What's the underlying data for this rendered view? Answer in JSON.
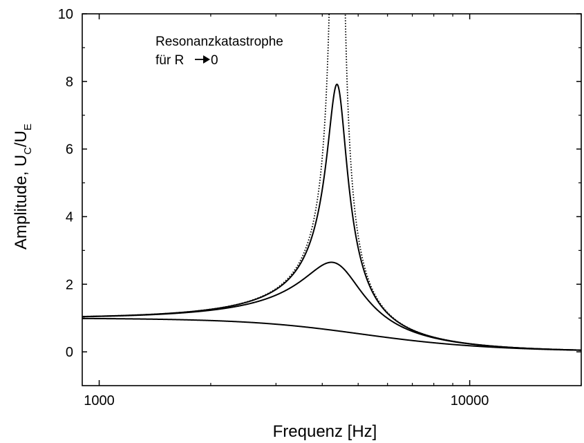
{
  "chart_data": {
    "type": "line",
    "title": "",
    "xlabel": "Frequenz [Hz]",
    "ylabel": {
      "prefix": "Amplitude, U",
      "sub1": "C",
      "mid": "/U",
      "sub2": "E"
    },
    "xscale": "log",
    "xlim": [
      900,
      20000
    ],
    "ylim": [
      -1,
      10
    ],
    "xticks": [
      1000,
      10000
    ],
    "xtick_labels": [
      "1000",
      "10000"
    ],
    "yticks": [
      0,
      2,
      4,
      6,
      8,
      10
    ],
    "ytick_labels": [
      "0",
      "2",
      "4",
      "6",
      "8",
      "10"
    ],
    "grid": false,
    "legend": "none",
    "annotation": {
      "line1": "Resonanzkatastrophe",
      "line2_start": "für R",
      "line2_end": "0"
    },
    "model": {
      "resonance_hz": 4400
    },
    "series": [
      {
        "quality_factor": 7.9,
        "style": "solid"
      },
      {
        "quality_factor": 2.6,
        "style": "solid"
      },
      {
        "quality_factor": 0.62,
        "style": "solid"
      },
      {
        "quality_factor": 1000,
        "style": "dotted"
      }
    ]
  }
}
